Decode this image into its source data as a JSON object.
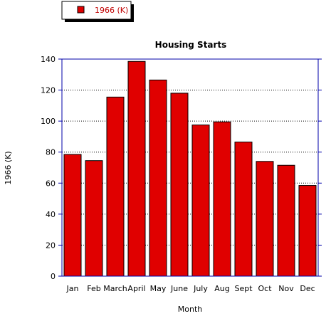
{
  "colors": {
    "bar_fill": "#e00000",
    "bar_stroke": "#000000",
    "axis": "#0000aa",
    "gridline": "#000000",
    "legend_text": "#c00000"
  },
  "chart_data": {
    "type": "bar",
    "title": "Housing Starts",
    "xlabel": "Month",
    "ylabel": "1966 (K)",
    "categories": [
      "Jan",
      "Feb",
      "March",
      "April",
      "May",
      "June",
      "July",
      "Aug",
      "Sept",
      "Oct",
      "Nov",
      "Dec"
    ],
    "series": [
      {
        "name": "1966 (K)",
        "values": [
          78.5,
          74.5,
          115.5,
          138.5,
          126.5,
          118,
          97.5,
          99.5,
          86.5,
          74,
          71.5,
          58.5
        ]
      }
    ],
    "ylim": [
      0,
      140
    ],
    "yticks": [
      0,
      20,
      40,
      60,
      80,
      100,
      120,
      140
    ],
    "grid": "horizontal dotted",
    "legend_position": "top-left"
  }
}
